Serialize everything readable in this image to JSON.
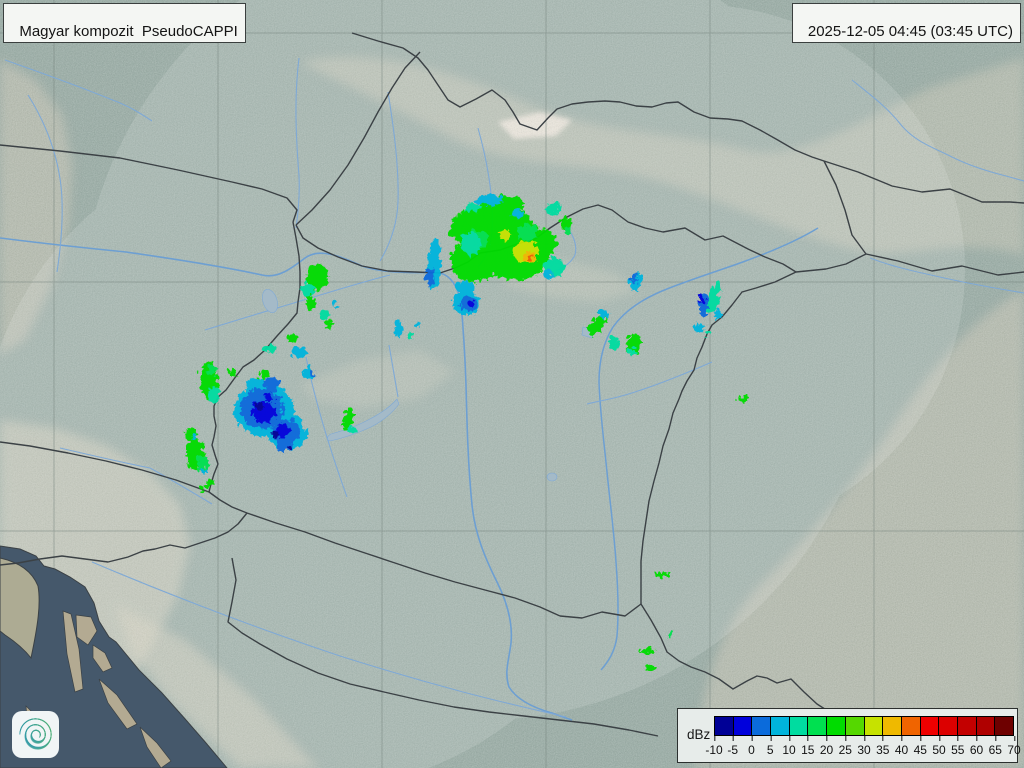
{
  "header": {
    "product_label": "Magyar kompozit  PseudoCAPPI",
    "timestamp": "2025-12-05 04:45 (03:45 UTC)"
  },
  "legend": {
    "unit_label": "dBz",
    "tick_labels": [
      "-10",
      "-5",
      "0",
      "5",
      "10",
      "15",
      "20",
      "25",
      "30",
      "35",
      "40",
      "45",
      "50",
      "55",
      "60",
      "65",
      "70"
    ],
    "palette": [
      "#000096",
      "#0000DC",
      "#0B6BDB",
      "#00B4DC",
      "#00DCA0",
      "#00E050",
      "#00DC00",
      "#55D800",
      "#C6E200",
      "#EFB900",
      "#F06400",
      "#EF0000",
      "#DC0000",
      "#C30000",
      "#AF0000",
      "#6E0000"
    ]
  },
  "branding": {
    "logo": "hungaromet-spiral-logo"
  },
  "map": {
    "region": "Hungary radar composite with surrounding countries",
    "colors": {
      "land": "#9aaca5",
      "terrain_highlight": "#d6cfbd",
      "coverage_tint": "#ffffff",
      "sea": "#45586b",
      "island": "#b3aa92",
      "river": "#7fa9d6",
      "lake": "#a4bac8",
      "border": "#3b4145",
      "grid": "#75837d"
    }
  }
}
